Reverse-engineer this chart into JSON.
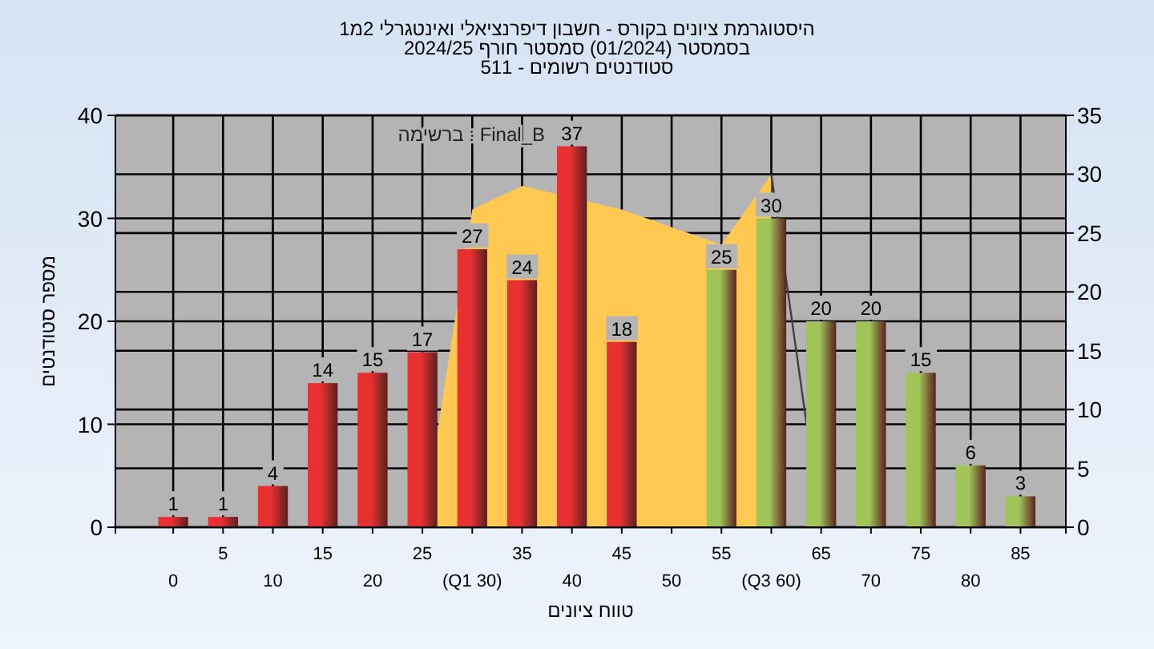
{
  "chart_data": {
    "type": "bar",
    "title": "היסטוגרמת ציונים בקורס - חשבון דיפרנציאלי ואינטגרלי 2מ1",
    "subtitle": "בסמסטר  (01/2024)  סמסטר חורף 2024/25\nסטודנטים רשומים - 511",
    "xlabel": "טווח ציונים",
    "ylabel": "מספר סטודנטים",
    "annotations": [
      "Final_B : ברשימה"
    ],
    "categories": [
      "0",
      "5",
      "10",
      "15",
      "20",
      "25",
      "(Q1 30)",
      "35",
      "40",
      "45",
      "50",
      "55",
      "(Q3 60)",
      "65",
      "70",
      "75",
      "80",
      "85"
    ],
    "series": [
      {
        "type": "area",
        "axis": "y2",
        "color": "#ffc850",
        "values": [
          null,
          null,
          null,
          null,
          null,
          0,
          27,
          29,
          null,
          27,
          25.5,
          24,
          30,
          null,
          null,
          null,
          null,
          null
        ]
      },
      {
        "type": "line",
        "axis": "y2",
        "color": "#404040",
        "values": [
          null,
          null,
          null,
          null,
          null,
          null,
          null,
          null,
          null,
          null,
          null,
          null,
          30,
          0,
          null,
          null,
          null,
          null
        ]
      },
      {
        "value_labels": [
          "1",
          "1",
          "4",
          "14",
          "15",
          "17",
          "27",
          "24",
          "37",
          "18",
          null,
          "25",
          "30",
          "20",
          "20",
          "15",
          "6",
          "3"
        ],
        "colors": [
          "#e83030",
          "#e83030",
          "#e83030",
          "#e83030",
          "#e83030",
          "#e83030",
          "#e83030",
          "#e83030",
          "#e83030",
          "#e83030",
          null,
          "#a0c458",
          "#a0c458",
          "#a0c458",
          "#a0c458",
          "#a0c458",
          "#a0c458",
          "#a0c458"
        ],
        "values": [
          1,
          1,
          4,
          14,
          15,
          17,
          27,
          24,
          37,
          18,
          null,
          25,
          30,
          20,
          20,
          15,
          6,
          3
        ]
      }
    ],
    "grid": true,
    "ylim": [
      0,
      40
    ],
    "yticks": [
      0,
      10,
      20,
      30,
      40
    ],
    "y2lim": [
      0,
      35
    ],
    "y2ticks": [
      0,
      5,
      10,
      15,
      20,
      25,
      30,
      35
    ]
  }
}
